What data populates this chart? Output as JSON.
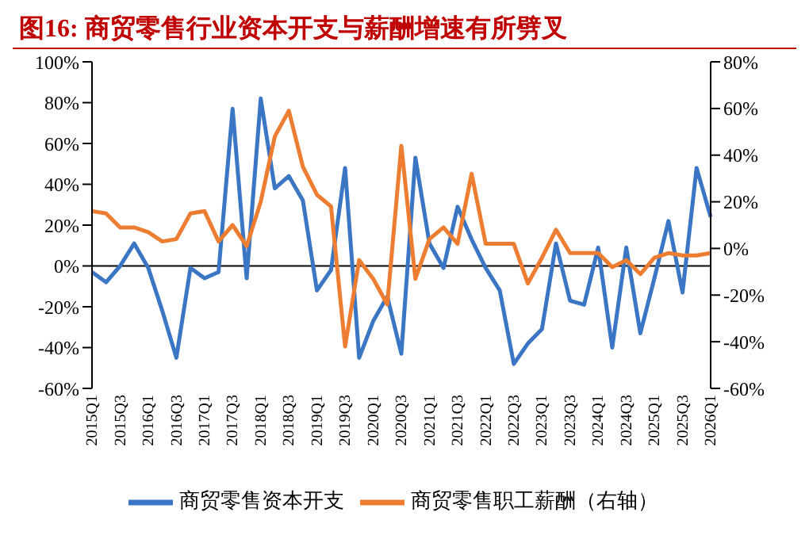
{
  "chart_data": {
    "type": "line",
    "title": "图16: 商贸零售行业资本开支与薪酬增速有所劈叉",
    "categories": [
      "2015Q1",
      null,
      "2015Q3",
      null,
      "2016Q1",
      null,
      "2016Q3",
      null,
      "2017Q1",
      null,
      "2017Q3",
      null,
      "2018Q1",
      null,
      "2018Q3",
      null,
      "2019Q1",
      null,
      "2019Q3",
      null,
      "2020Q1",
      null,
      "2020Q3",
      null,
      "2021Q1",
      null,
      "2021Q3",
      null,
      "2022Q1",
      null,
      "2022Q3",
      null,
      "2023Q1",
      null,
      "2023Q3",
      null,
      "2024Q1",
      null,
      "2024Q3",
      null,
      "2025Q1",
      null,
      "2025Q3",
      null,
      "2026Q1"
    ],
    "series": [
      {
        "name": "商贸零售资本开支",
        "color": "#3b76c4",
        "values": [
          -3,
          -8,
          0,
          11,
          -1,
          -22,
          -45,
          -1,
          -6,
          -3,
          77,
          -6,
          82,
          38,
          44,
          32,
          -12,
          -2,
          48,
          -45,
          -27,
          -15,
          -43,
          53,
          11,
          -1,
          29,
          13,
          -1,
          -12,
          -48,
          -38,
          -31,
          11,
          -17,
          -19,
          9,
          -40,
          9,
          -33,
          -6,
          22,
          -13,
          48,
          24
        ]
      },
      {
        "name": "商贸零售职工薪酬（右轴）",
        "color": "#ed7d31",
        "axis": "y2",
        "values": [
          16,
          15,
          9,
          9,
          7,
          3,
          4,
          15,
          16,
          3,
          10,
          1,
          20,
          48,
          59,
          35,
          23,
          18,
          -42,
          -5,
          -13,
          -24,
          44,
          -13,
          4,
          9,
          2,
          32,
          2,
          2,
          2,
          -15,
          -4,
          8,
          -2,
          -2,
          -2,
          -8,
          -5,
          -11,
          -4,
          -2,
          -3,
          -3,
          -2
        ]
      }
    ],
    "ylim": [
      -60,
      100
    ],
    "yticks": [
      {
        "value": -60,
        "label": "-60%"
      },
      {
        "value": -40,
        "label": "-40%"
      },
      {
        "value": -20,
        "label": "-20%"
      },
      {
        "value": 0,
        "label": "0%"
      },
      {
        "value": 20,
        "label": "20%"
      },
      {
        "value": 40,
        "label": "40%"
      },
      {
        "value": 60,
        "label": "60%"
      },
      {
        "value": 80,
        "label": "80%"
      },
      {
        "value": 100,
        "label": "100%"
      }
    ],
    "y2lim": [
      -60,
      80
    ],
    "y2ticks": [
      {
        "value": -60,
        "label": "-60%"
      },
      {
        "value": -40,
        "label": "-40%"
      },
      {
        "value": -20,
        "label": "-20%"
      },
      {
        "value": 0,
        "label": "0%"
      },
      {
        "value": 20,
        "label": "20%"
      },
      {
        "value": 40,
        "label": "40%"
      },
      {
        "value": 60,
        "label": "60%"
      },
      {
        "value": 80,
        "label": "80%"
      }
    ],
    "ref_lines": [
      {
        "axis": "y",
        "value": 0,
        "color": "#000000"
      }
    ],
    "grid": false,
    "legend": "bottom",
    "marker": "none",
    "line_style": "solid"
  }
}
